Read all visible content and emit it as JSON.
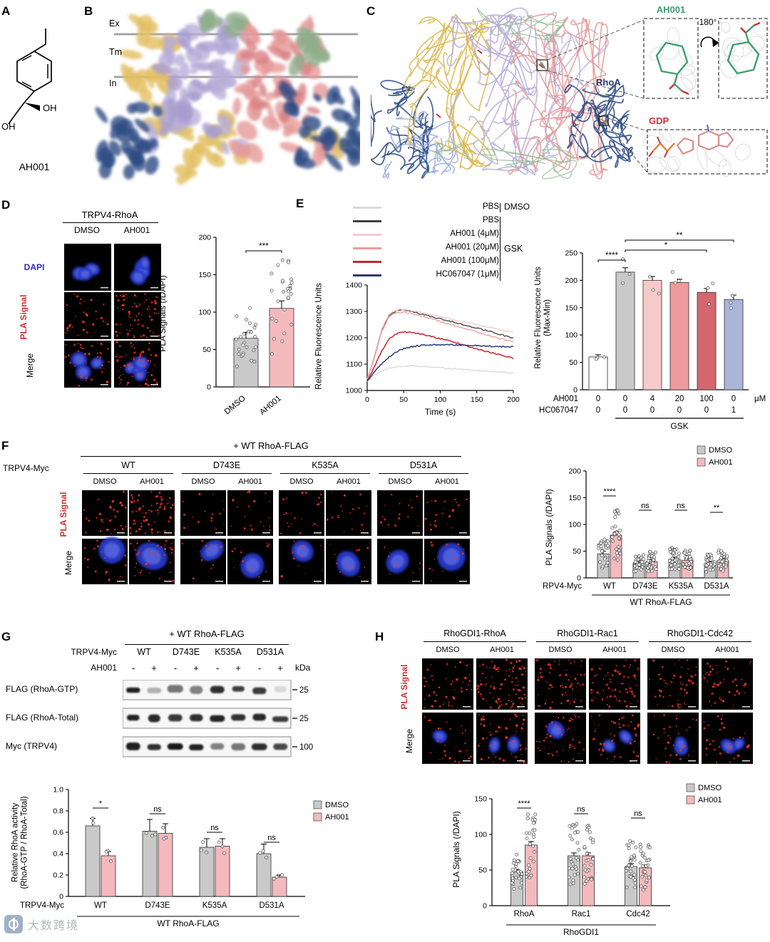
{
  "watermark": {
    "text": "大数跨境"
  },
  "panels": {
    "A": {
      "label": "A",
      "compound": "AH001",
      "oh_right": "OH",
      "oh_left": "OH"
    },
    "B": {
      "label": "B",
      "regions": [
        "Ex",
        "Tm",
        "In"
      ]
    },
    "C": {
      "label": "C",
      "ah001": "AH001",
      "rhoa": "RhoA",
      "gdp": "GDP",
      "rotation": "180°"
    },
    "D": {
      "label": "D",
      "title": "TRPV4-RhoA",
      "columns": [
        "DMSO",
        "AH001"
      ],
      "row_dapi": "DAPI",
      "row_pla": "PLA Signal",
      "row_merge": "Merge"
    },
    "E": {
      "label": "E",
      "legend": {
        "rows": [
          {
            "label": "PBS",
            "color": "#d9d9d9"
          },
          {
            "label": "PBS",
            "color": "#3f3f3f"
          },
          {
            "label": "AH001 (4μM)",
            "color": "#f7caca"
          },
          {
            "label": "AH001 (20μM)",
            "color": "#ef9b9e"
          },
          {
            "label": "AH001 (100μM)",
            "color": "#c2272d"
          },
          {
            "label": "HC067047 (1μM)",
            "color": "#2a3a72"
          }
        ],
        "group_first": "DMSO",
        "group_rest": "GSK"
      }
    },
    "F": {
      "label": "F",
      "title": "+ WT RhoA-FLAG",
      "axis_label": "TRPV4-Myc",
      "groups": [
        "WT",
        "D743E",
        "K535A",
        "D531A"
      ],
      "columns": [
        "DMSO",
        "AH001"
      ],
      "row_pla": "PLA Signal",
      "row_merge": "Merge"
    },
    "G": {
      "label": "G",
      "title": "+ WT RhoA-FLAG",
      "myc_label": "TRPV4-Myc",
      "constructs": [
        "WT",
        "D743E",
        "K535A",
        "D531A"
      ],
      "ah001_label": "AH001",
      "lane_signs": [
        "-",
        "+",
        "-",
        "+",
        "-",
        "+",
        "-",
        "+"
      ],
      "kda_label": "kDa",
      "blots": [
        {
          "label": "FLAG (RhoA-GTP)",
          "marker": "25",
          "intensities": [
            0.92,
            0.3,
            0.55,
            0.5,
            0.85,
            0.78,
            0.8,
            0.12
          ]
        },
        {
          "label": "FLAG (RhoA-Total)",
          "marker": "25",
          "intensities": [
            0.9,
            0.88,
            0.82,
            0.85,
            0.9,
            0.84,
            0.88,
            0.8
          ]
        },
        {
          "label": "Myc (TRPV4)",
          "marker": "100",
          "intensities": [
            0.92,
            0.85,
            0.95,
            0.9,
            0.5,
            0.55,
            0.85,
            0.75
          ]
        }
      ]
    },
    "H": {
      "label": "H",
      "groups": [
        "RhoGDI1-RhoA",
        "RhoGDI1-Rac1",
        "RhoGDI1-Cdc42"
      ],
      "columns": [
        "DMSO",
        "AH001"
      ],
      "row_pla": "PLA Signal",
      "row_merge": "Merge"
    }
  },
  "chart_data": [
    {
      "id": "D_pla",
      "type": "bar",
      "ylabel": "PLA Signals (/DAPI)",
      "ylim": [
        0,
        200
      ],
      "yticks": [
        0,
        50,
        100,
        150,
        200
      ],
      "categories": [
        "DMSO",
        "AH001"
      ],
      "values": [
        65,
        105
      ],
      "errors": [
        8,
        10
      ],
      "colors": [
        "#c9c9c9",
        "#f4b9bc"
      ],
      "sig": [
        {
          "a": 0,
          "b": 1,
          "label": "***"
        }
      ],
      "scatter_counts": [
        26,
        28
      ]
    },
    {
      "id": "E_trace",
      "type": "line",
      "xlabel": "Time (s)",
      "ylabel": "Relative Fluorescence Units",
      "xlim": [
        0,
        200
      ],
      "ylim": [
        1000,
        1400
      ],
      "xticks": [
        0,
        50,
        100,
        150,
        200
      ],
      "yticks": [
        1000,
        1100,
        1200,
        1300,
        1400
      ],
      "x": [
        0,
        10,
        20,
        30,
        40,
        50,
        60,
        70,
        80,
        90,
        100,
        110,
        120,
        130,
        140,
        150,
        160,
        170,
        180,
        190,
        200
      ],
      "series": [
        {
          "name": "PBS (DMSO)",
          "color": "#d9d9d9",
          "width": 1.4,
          "values": [
            1035,
            1060,
            1075,
            1085,
            1090,
            1092,
            1093,
            1092,
            1090,
            1088,
            1086,
            1084,
            1082,
            1080,
            1078,
            1076,
            1074,
            1072,
            1070,
            1068,
            1066
          ]
        },
        {
          "name": "PBS (GSK)",
          "color": "#3f3f3f",
          "width": 1.4,
          "values": [
            1040,
            1130,
            1230,
            1285,
            1302,
            1305,
            1300,
            1293,
            1286,
            1279,
            1272,
            1265,
            1258,
            1251,
            1244,
            1237,
            1230,
            1222,
            1214,
            1206,
            1198
          ]
        },
        {
          "name": "AH001 4uM (GSK)",
          "color": "#f7caca",
          "width": 1.4,
          "values": [
            1042,
            1135,
            1235,
            1290,
            1305,
            1308,
            1304,
            1298,
            1292,
            1286,
            1280,
            1274,
            1268,
            1262,
            1256,
            1250,
            1244,
            1238,
            1232,
            1226,
            1220
          ]
        },
        {
          "name": "AH001 20uM (GSK)",
          "color": "#ef9b9e",
          "width": 1.4,
          "values": [
            1040,
            1125,
            1225,
            1280,
            1295,
            1297,
            1292,
            1285,
            1278,
            1270,
            1262,
            1254,
            1246,
            1238,
            1230,
            1222,
            1214,
            1206,
            1198,
            1191,
            1185
          ]
        },
        {
          "name": "AH001 100uM (GSK)",
          "color": "#c2272d",
          "width": 1.6,
          "values": [
            1038,
            1090,
            1150,
            1195,
            1215,
            1222,
            1221,
            1216,
            1210,
            1203,
            1196,
            1189,
            1182,
            1174,
            1166,
            1158,
            1150,
            1143,
            1136,
            1129,
            1122
          ]
        },
        {
          "name": "HC067047 1uM (GSK)",
          "color": "#2a3a72",
          "width": 1.6,
          "values": [
            1036,
            1070,
            1102,
            1128,
            1147,
            1159,
            1166,
            1170,
            1172,
            1173,
            1174,
            1174,
            1173,
            1172,
            1171,
            1170,
            1169,
            1168,
            1167,
            1166,
            1165
          ]
        }
      ]
    },
    {
      "id": "E_maxmin",
      "type": "bar",
      "ylabel": "Relative Fluorescence Units (Max-Min)",
      "ylim": [
        0,
        250
      ],
      "yticks": [
        0,
        50,
        100,
        150,
        200,
        250
      ],
      "values": [
        60,
        215,
        200,
        196,
        178,
        165
      ],
      "errors": [
        4,
        8,
        7,
        6,
        7,
        8
      ],
      "colors": [
        "#ffffff",
        "#c9c9c9",
        "#f7caca",
        "#ef9b9e",
        "#d4666e",
        "#aab5da"
      ],
      "sig": [
        {
          "a": 0,
          "b": 1,
          "label": "****"
        },
        {
          "a": 1,
          "b": 4,
          "label": "*"
        },
        {
          "a": 1,
          "b": 5,
          "label": "**"
        }
      ],
      "xrows": [
        {
          "label": "AH001",
          "values": [
            "0",
            "0",
            "4",
            "20",
            "100",
            "0"
          ]
        },
        {
          "label": "HC067047",
          "values": [
            "0",
            "0",
            "0",
            "0",
            "0",
            "1"
          ]
        }
      ],
      "unit": "μM",
      "bottom_group": "GSK",
      "scatter_counts": [
        3,
        3,
        3,
        3,
        3,
        3
      ]
    },
    {
      "id": "F_pla",
      "type": "grouped-bar",
      "ylabel": "PLA Signals (/DAPI)",
      "ylim": [
        0,
        200
      ],
      "yticks": [
        0,
        50,
        100,
        150,
        200
      ],
      "categories": [
        "WT",
        "D743E",
        "K535A",
        "D531A"
      ],
      "series": [
        {
          "name": "DMSO",
          "color": "#c9c9c9",
          "values": [
            45,
            28,
            35,
            27
          ],
          "errors": [
            5,
            4,
            4,
            4
          ]
        },
        {
          "name": "AH001",
          "color": "#f4b9bc",
          "values": [
            80,
            30,
            33,
            32
          ],
          "errors": [
            6,
            4,
            4,
            4
          ]
        }
      ],
      "sig": [
        "****",
        "ns",
        "ns",
        "**"
      ],
      "axis_prefix": "TRPV4-Myc",
      "bottom_group": "WT RhoA-FLAG",
      "scatter_counts": 30
    },
    {
      "id": "G_activity",
      "type": "grouped-bar",
      "ylabel": "Relative RhoA activity (RhoA-GTP / RhoA-Total)",
      "ylim": [
        0,
        1.0
      ],
      "yticks": [
        0,
        0.2,
        0.4,
        0.6,
        0.8,
        1.0
      ],
      "categories": [
        "WT",
        "D743E",
        "K535A",
        "D531A"
      ],
      "series": [
        {
          "name": "DMSO",
          "color": "#c9c9c9",
          "values": [
            0.66,
            0.61,
            0.46,
            0.4
          ],
          "errors": [
            0.07,
            0.11,
            0.08,
            0.09
          ]
        },
        {
          "name": "AH001",
          "color": "#f4b9bc",
          "values": [
            0.38,
            0.59,
            0.47,
            0.18
          ],
          "errors": [
            0.04,
            0.09,
            0.07,
            0.02
          ]
        }
      ],
      "sig": [
        "*",
        "ns",
        "ns",
        "ns"
      ],
      "axis_prefix": "TRPV4-Myc",
      "bottom_group": "WT RhoA-FLAG",
      "scatter_counts": 3
    },
    {
      "id": "H_pla",
      "type": "grouped-bar",
      "ylabel": "PLA Signals (/DAPI)",
      "ylim": [
        0,
        150
      ],
      "yticks": [
        0,
        50,
        100,
        150
      ],
      "categories": [
        "RhoA",
        "Rac1",
        "Cdc42"
      ],
      "series": [
        {
          "name": "DMSO",
          "color": "#c9c9c9",
          "values": [
            47,
            70,
            55
          ],
          "errors": [
            4,
            4,
            4
          ]
        },
        {
          "name": "AH001",
          "color": "#f4b9bc",
          "values": [
            85,
            70,
            53
          ],
          "errors": [
            5,
            4,
            4
          ]
        }
      ],
      "sig": [
        "****",
        "ns",
        "ns"
      ],
      "bottom_group": "RhoGDI1",
      "scatter_counts": 28
    }
  ]
}
